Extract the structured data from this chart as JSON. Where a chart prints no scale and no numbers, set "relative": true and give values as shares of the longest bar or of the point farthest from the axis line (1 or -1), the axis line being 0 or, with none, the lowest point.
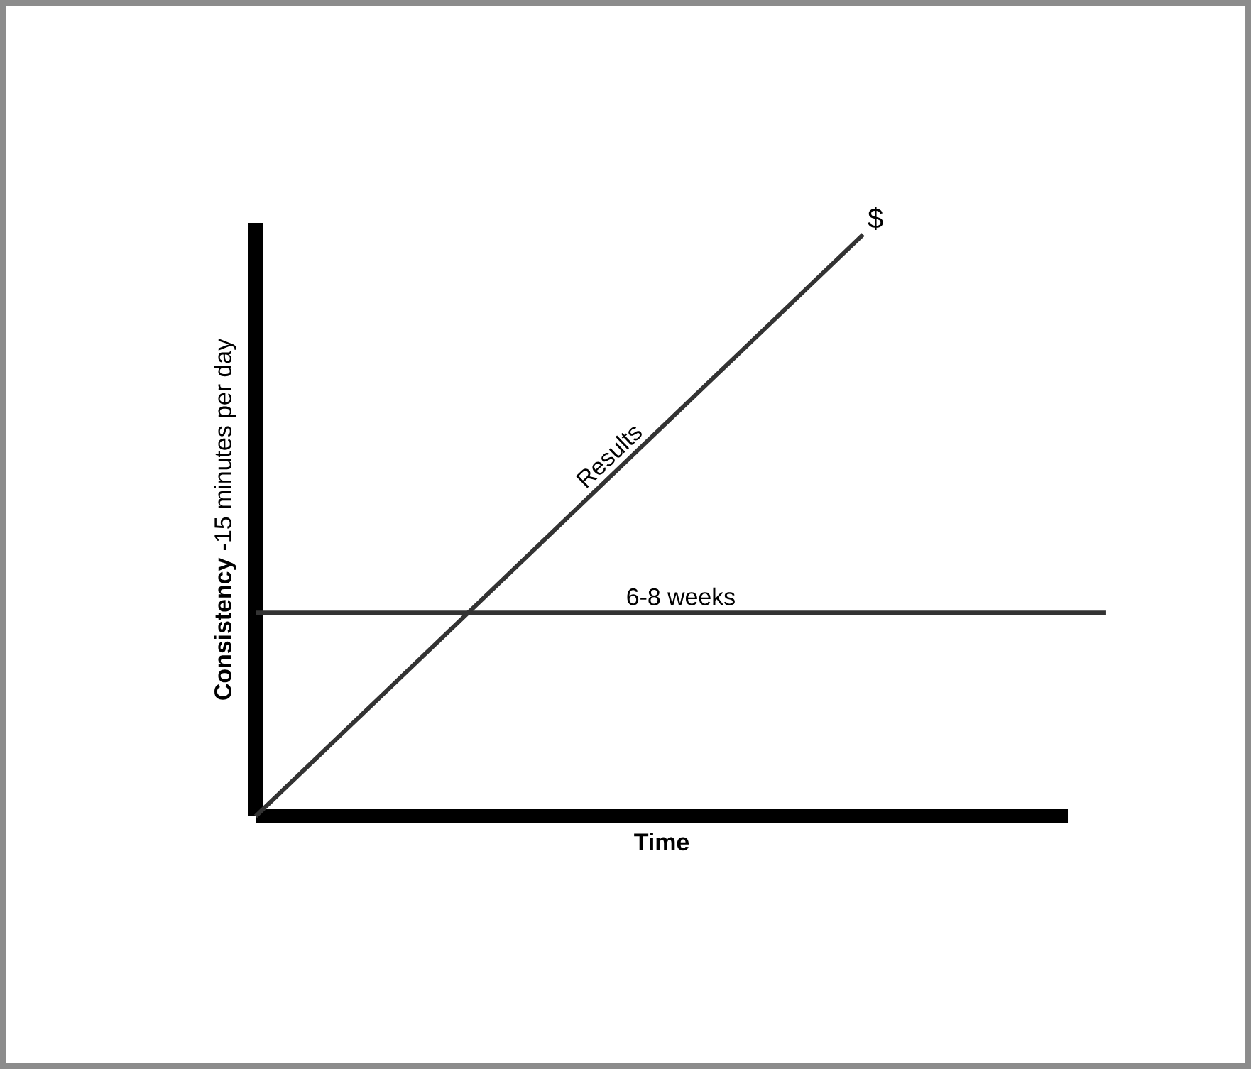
{
  "chart_data": {
    "type": "line",
    "relative": true,
    "xlabel": "Time",
    "ylabel": "**Consistency -**15 minutes per day",
    "annotations": [
      "$"
    ],
    "categories": [
      null,
      null,
      null,
      null,
      null,
      null,
      null,
      null
    ],
    "series": [
      {
        "name": "Results",
        "color": "#333333",
        "values": [
          0,
          0.2,
          0.4,
          0.6,
          0.8,
          1,
          null,
          null
        ]
      },
      {
        "name": "6-8 weeks",
        "color": "#333333",
        "values": [
          0.35,
          0.35,
          0.35,
          0.35,
          0.35,
          0.35,
          0.35,
          0.35
        ]
      }
    ]
  }
}
